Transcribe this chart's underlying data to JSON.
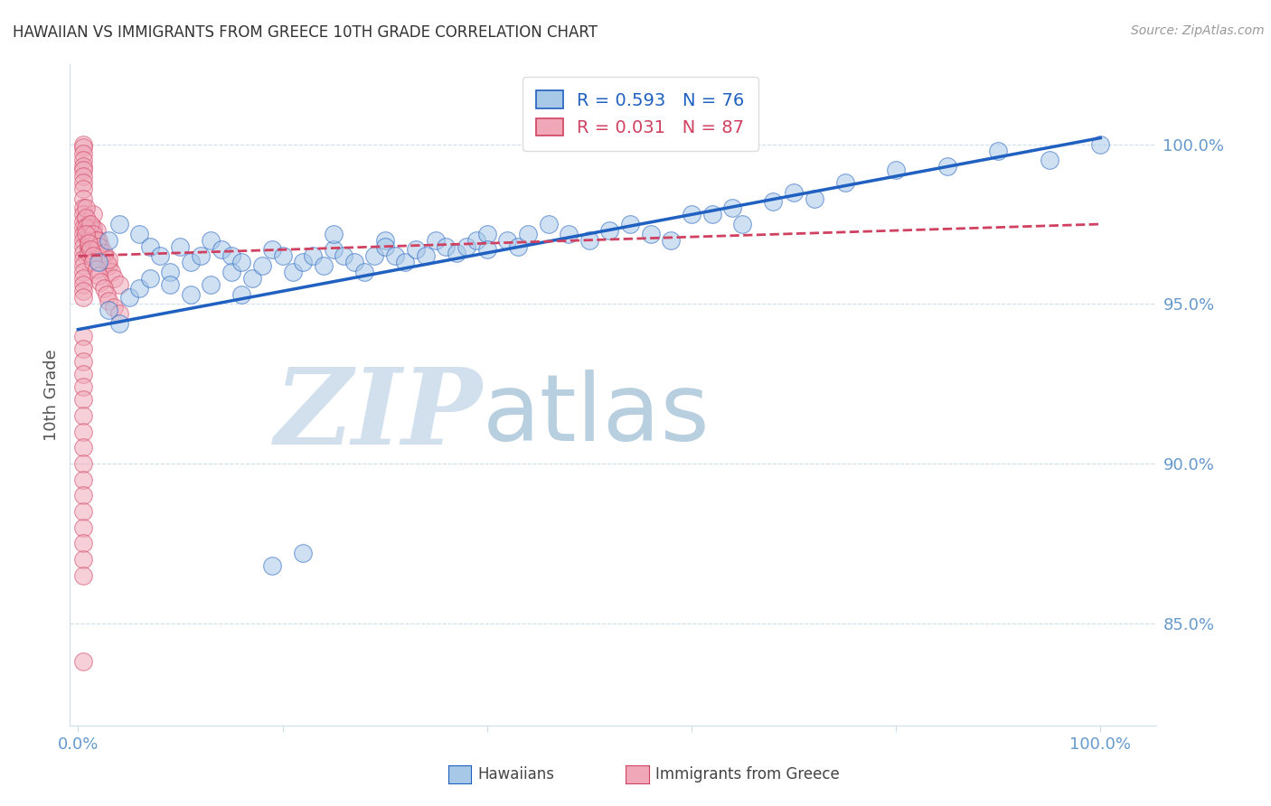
{
  "title": "HAWAIIAN VS IMMIGRANTS FROM GREECE 10TH GRADE CORRELATION CHART",
  "source": "Source: ZipAtlas.com",
  "ylabel": "10th Grade",
  "yticks": [
    0.85,
    0.9,
    0.95,
    1.0
  ],
  "ytick_labels": [
    "85.0%",
    "90.0%",
    "95.0%",
    "100.0%"
  ],
  "ymin": 0.818,
  "ymax": 1.025,
  "xmin": -0.008,
  "xmax": 1.055,
  "legend_r1": "R = 0.593",
  "legend_n1": "N = 76",
  "legend_r2": "R = 0.031",
  "legend_n2": "N = 87",
  "color_blue": "#a8c8e8",
  "color_pink": "#f0a8b8",
  "color_blue_line": "#2060c0",
  "color_pink_line": "#d04060",
  "color_axis_text": "#6699cc",
  "color_grid": "#ccddee",
  "watermark_zip": "ZIP",
  "watermark_atlas": "atlas",
  "watermark_color_zip": "#c0d4e8",
  "watermark_color_atlas": "#9bbbd4",
  "label_hawaiians": "Hawaiians",
  "label_immigrants": "Immigrants from Greece",
  "blue_trend_x0": 0.0,
  "blue_trend_y0": 0.942,
  "blue_trend_x1": 1.0,
  "blue_trend_y1": 1.002,
  "pink_trend_x0": 0.0,
  "pink_trend_y0": 0.965,
  "pink_trend_x1": 1.0,
  "pink_trend_y1": 0.975,
  "hawaiians_x": [
    0.02,
    0.03,
    0.04,
    0.06,
    0.07,
    0.08,
    0.09,
    0.1,
    0.11,
    0.12,
    0.13,
    0.14,
    0.15,
    0.15,
    0.16,
    0.17,
    0.18,
    0.19,
    0.2,
    0.21,
    0.22,
    0.23,
    0.24,
    0.25,
    0.25,
    0.26,
    0.27,
    0.28,
    0.29,
    0.3,
    0.3,
    0.31,
    0.32,
    0.33,
    0.34,
    0.35,
    0.36,
    0.37,
    0.38,
    0.39,
    0.4,
    0.4,
    0.42,
    0.43,
    0.44,
    0.46,
    0.48,
    0.5,
    0.52,
    0.54,
    0.56,
    0.58,
    0.6,
    0.62,
    0.64,
    0.65,
    0.68,
    0.7,
    0.72,
    0.75,
    0.8,
    0.85,
    0.9,
    0.95,
    1.0,
    0.03,
    0.04,
    0.05,
    0.06,
    0.07,
    0.09,
    0.11,
    0.13,
    0.16,
    0.19,
    0.22
  ],
  "hawaiians_y": [
    0.963,
    0.97,
    0.975,
    0.972,
    0.968,
    0.965,
    0.96,
    0.968,
    0.963,
    0.965,
    0.97,
    0.967,
    0.965,
    0.96,
    0.963,
    0.958,
    0.962,
    0.967,
    0.965,
    0.96,
    0.963,
    0.965,
    0.962,
    0.967,
    0.972,
    0.965,
    0.963,
    0.96,
    0.965,
    0.97,
    0.968,
    0.965,
    0.963,
    0.967,
    0.965,
    0.97,
    0.968,
    0.966,
    0.968,
    0.97,
    0.972,
    0.967,
    0.97,
    0.968,
    0.972,
    0.975,
    0.972,
    0.97,
    0.973,
    0.975,
    0.972,
    0.97,
    0.978,
    0.978,
    0.98,
    0.975,
    0.982,
    0.985,
    0.983,
    0.988,
    0.992,
    0.993,
    0.998,
    0.995,
    1.0,
    0.948,
    0.944,
    0.952,
    0.955,
    0.958,
    0.956,
    0.953,
    0.956,
    0.953,
    0.868,
    0.872
  ],
  "greece_x": [
    0.005,
    0.005,
    0.005,
    0.005,
    0.005,
    0.005,
    0.005,
    0.005,
    0.005,
    0.005,
    0.005,
    0.005,
    0.005,
    0.005,
    0.005,
    0.005,
    0.005,
    0.005,
    0.005,
    0.005,
    0.005,
    0.005,
    0.005,
    0.005,
    0.005,
    0.01,
    0.01,
    0.01,
    0.01,
    0.01,
    0.012,
    0.012,
    0.015,
    0.015,
    0.015,
    0.018,
    0.018,
    0.02,
    0.02,
    0.022,
    0.022,
    0.025,
    0.028,
    0.03,
    0.032,
    0.035,
    0.04,
    0.008,
    0.008,
    0.008,
    0.012,
    0.015,
    0.018,
    0.02,
    0.025,
    0.03,
    0.008,
    0.01,
    0.012,
    0.015,
    0.015,
    0.018,
    0.02,
    0.022,
    0.025,
    0.028,
    0.03,
    0.035,
    0.04,
    0.005,
    0.005,
    0.005,
    0.005,
    0.005,
    0.005,
    0.005,
    0.005,
    0.005,
    0.005,
    0.005,
    0.005,
    0.005,
    0.005,
    0.005,
    0.005,
    0.005,
    0.005
  ],
  "greece_y": [
    1.0,
    0.999,
    0.997,
    0.995,
    0.993,
    0.992,
    0.99,
    0.988,
    0.986,
    0.983,
    0.98,
    0.978,
    0.976,
    0.974,
    0.972,
    0.97,
    0.968,
    0.966,
    0.964,
    0.962,
    0.96,
    0.958,
    0.956,
    0.954,
    0.952,
    0.975,
    0.972,
    0.97,
    0.968,
    0.966,
    0.972,
    0.968,
    0.978,
    0.974,
    0.97,
    0.973,
    0.969,
    0.97,
    0.966,
    0.968,
    0.964,
    0.965,
    0.963,
    0.962,
    0.96,
    0.958,
    0.956,
    0.98,
    0.977,
    0.974,
    0.975,
    0.972,
    0.97,
    0.968,
    0.966,
    0.964,
    0.972,
    0.969,
    0.967,
    0.965,
    0.963,
    0.961,
    0.959,
    0.957,
    0.955,
    0.953,
    0.951,
    0.949,
    0.947,
    0.94,
    0.936,
    0.932,
    0.928,
    0.924,
    0.92,
    0.915,
    0.91,
    0.905,
    0.9,
    0.895,
    0.89,
    0.885,
    0.88,
    0.875,
    0.87,
    0.865,
    0.838
  ]
}
